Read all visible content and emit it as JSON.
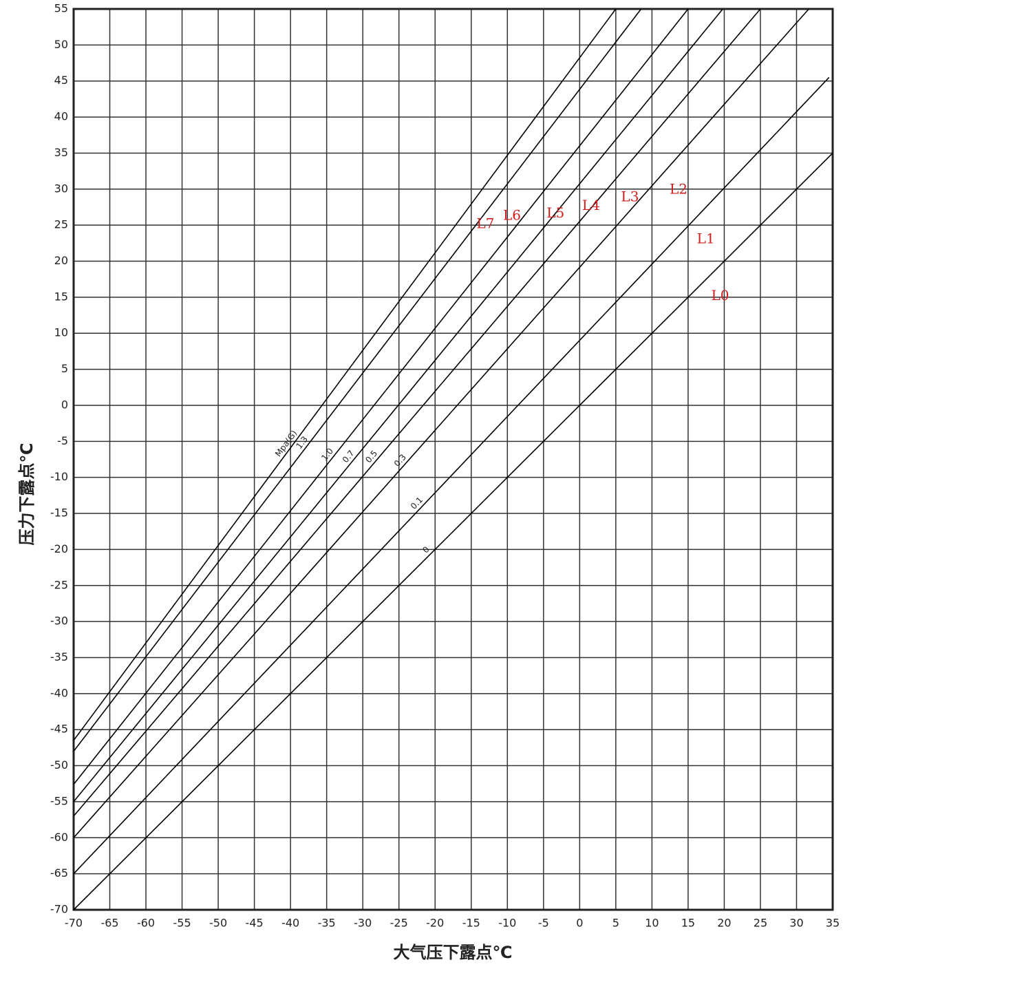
{
  "chart_data": {
    "type": "line",
    "x_label": "大气压下露点℃",
    "y_label": "压力下露点℃",
    "xlim": [
      -70,
      35
    ],
    "ylim": [
      -70,
      55
    ],
    "xticks": [
      -70,
      -65,
      -60,
      -55,
      -50,
      -45,
      -40,
      -35,
      -30,
      -25,
      -20,
      -15,
      -10,
      -5,
      0,
      5,
      10,
      15,
      20,
      25,
      30,
      35
    ],
    "yticks": [
      -70,
      -65,
      -60,
      -55,
      -50,
      -45,
      -40,
      -35,
      -30,
      -25,
      -20,
      -15,
      -10,
      -5,
      0,
      5,
      10,
      15,
      20,
      25,
      30,
      35,
      40,
      45,
      50,
      55
    ],
    "grid": true,
    "series": [
      {
        "name": "L0",
        "pressure": "0",
        "color": "#000000",
        "x": [
          -70,
          35
        ],
        "values": [
          -70,
          35
        ]
      },
      {
        "name": "L1",
        "pressure": "0.1",
        "color": "#000000",
        "x": [
          -70,
          34.5
        ],
        "values": [
          -65,
          45.5
        ]
      },
      {
        "name": "L2",
        "pressure": "0.3",
        "color": "#000000",
        "x": [
          -70,
          31.7
        ],
        "values": [
          -60,
          55
        ]
      },
      {
        "name": "L3",
        "pressure": "0.5",
        "color": "#000000",
        "x": [
          -70,
          25
        ],
        "values": [
          -57,
          55
        ]
      },
      {
        "name": "L4",
        "pressure": "0.7",
        "color": "#000000",
        "x": [
          -70,
          19.8
        ],
        "values": [
          -55,
          55
        ]
      },
      {
        "name": "L5",
        "pressure": "1.0",
        "color": "#000000",
        "x": [
          -70,
          15
        ],
        "values": [
          -52.6,
          55
        ]
      },
      {
        "name": "L6",
        "pressure": "1.3",
        "color": "#000000",
        "x": [
          -70,
          8.5
        ],
        "values": [
          -48,
          55
        ]
      },
      {
        "name": "L7",
        "pressure": "Mpa(G)",
        "color": "#000000",
        "x": [
          -70,
          5
        ],
        "values": [
          -46.5,
          55
        ]
      }
    ]
  }
}
